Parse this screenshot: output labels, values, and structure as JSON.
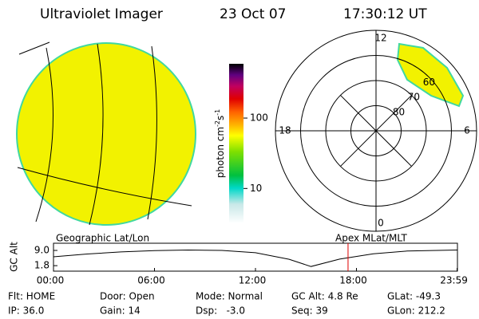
{
  "header": {
    "instrument": "Ultraviolet Imager",
    "date": "23 Oct 07",
    "time": "17:30:12 UT"
  },
  "colorbar": {
    "label": "photon cm",
    "exp1": "-2",
    "unit2": "s",
    "exp2": "-1",
    "lim": [
      3.2,
      590
    ],
    "log": true,
    "ticks": [
      100,
      10
    ]
  },
  "polar": {
    "lat_rings": [
      80,
      70,
      60
    ],
    "outer_lat": 50,
    "mlt_labels": [
      12,
      18,
      6,
      0
    ]
  },
  "altitude": {
    "left_label": "Geographic Lat/Lon",
    "right_label": "Apex MLat/MLT",
    "ylabel": "GC Alt",
    "xlim": [
      0,
      24
    ],
    "ylim": [
      -0.8,
      12.4
    ],
    "xticks": [
      {
        "value": 0,
        "label": "00:00"
      },
      {
        "value": 6,
        "label": "06:00"
      },
      {
        "value": 12,
        "label": "12:00"
      },
      {
        "value": 18,
        "label": "18:00"
      },
      {
        "value": 23.98,
        "label": "23:59"
      }
    ],
    "yticks": [
      {
        "value": 9,
        "label": "9.0"
      },
      {
        "value": 1.8,
        "label": "1.8"
      }
    ],
    "x": [
      0,
      2,
      4,
      6,
      8,
      10,
      12,
      14,
      15.3,
      17,
      19,
      21,
      23.98
    ],
    "values": [
      6.0,
      7.3,
      8.3,
      8.9,
      9.2,
      9.0,
      7.9,
      4.8,
      1.4,
      4.9,
      7.4,
      8.7,
      9.2
    ],
    "line_color": "#000000",
    "current_hour": 17.5,
    "marker_color": "#e00000"
  },
  "footer": {
    "rows": [
      [
        "Flt: HOME",
        "Door: Open",
        "Mode: Normal",
        "GC Alt: 4.8 Re",
        "GLat: -49.3"
      ],
      [
        "IP: 36.0",
        "Gain: 14",
        "Dsp:   -3.0",
        "Seq: 39",
        "GLon: 212.2"
      ]
    ]
  }
}
